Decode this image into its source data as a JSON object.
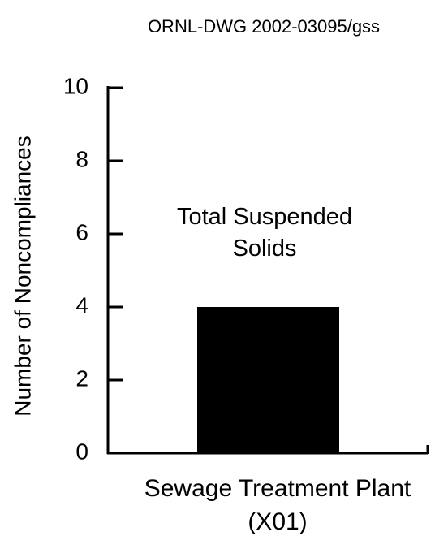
{
  "chart_data": {
    "type": "bar",
    "title": "ORNL-DWG 2002-03095/gss",
    "y_label": "Number of Noncompliances",
    "annotations": [
      "Total Suspended Solids"
    ],
    "categories": [
      "Sewage Treatment Plant (X01)"
    ],
    "values": [
      4
    ],
    "color": "#000000",
    "ylim": [
      0,
      10
    ],
    "yticks": [
      0,
      2,
      4,
      6,
      8,
      10
    ],
    "grid": false
  }
}
